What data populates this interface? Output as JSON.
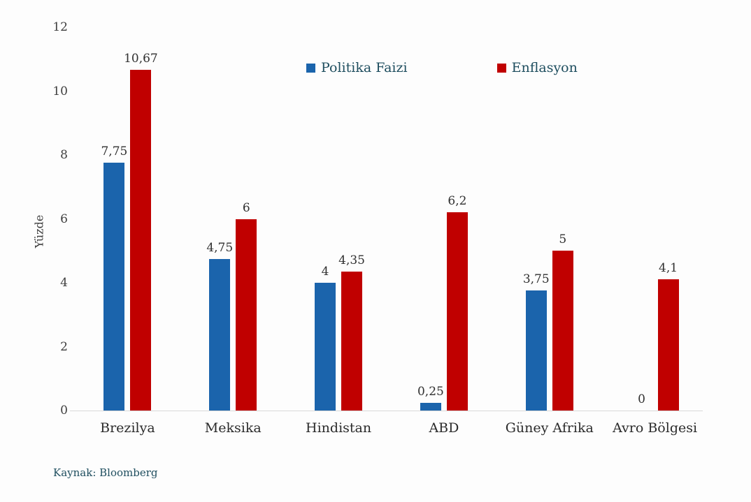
{
  "chart_data": {
    "type": "bar",
    "title": "",
    "ylabel": "Yüzde",
    "xlabel": "",
    "ylim": [
      0,
      12
    ],
    "yticks": [
      0,
      2,
      4,
      6,
      8,
      10,
      12
    ],
    "grid": false,
    "legend_position": "top-center",
    "categories": [
      "Brezilya",
      "Meksika",
      "Hindistan",
      "ABD",
      "Güney Afrika",
      "Avro Bölgesi"
    ],
    "series": [
      {
        "name": "Politika Faizi",
        "color": "#1b64ac",
        "values": [
          7.75,
          4.75,
          4,
          0.25,
          3.75,
          0
        ],
        "labels": [
          "7,75",
          "4,75",
          "4",
          "0,25",
          "3,75",
          "0"
        ]
      },
      {
        "name": "Enflasyon",
        "color": "#c00000",
        "values": [
          10.67,
          6,
          4.35,
          6.2,
          5,
          4.1
        ],
        "labels": [
          "10,67",
          "6",
          "4,35",
          "6,2",
          "5",
          "4,1"
        ]
      }
    ],
    "source": "Kaynak: Bloomberg"
  },
  "colors": {
    "background": "#fdfdfd",
    "axis_text": "#3f3f3f",
    "axis_line": "#d9d9d9",
    "value_label_text": "#303030",
    "category_text": "#2b2b2b",
    "legend_text": "#1f4e5f",
    "source_text": "#1f4e5f"
  }
}
